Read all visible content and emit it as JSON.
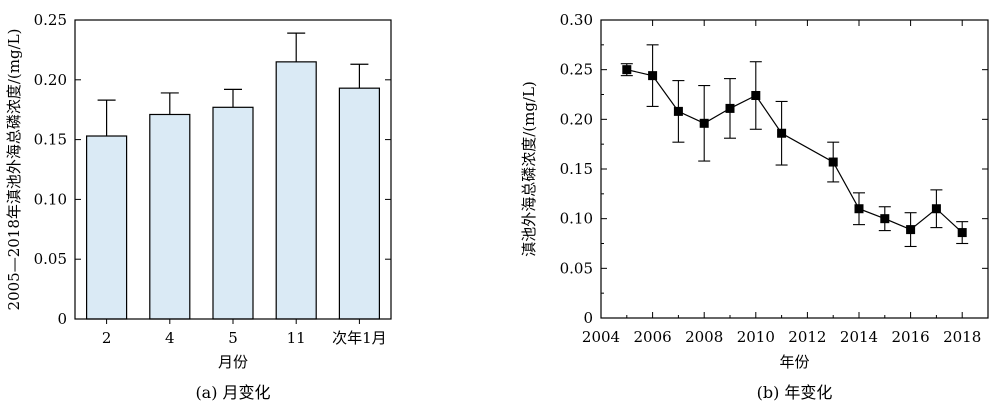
{
  "chart_data": [
    {
      "type": "bar",
      "caption": "(a) 月变化",
      "xlabel": "月份",
      "ylabel": "2005—2018年滇池外海总磷浓度/(mg/L)",
      "categories": [
        "2",
        "4",
        "5",
        "11",
        "次年1月"
      ],
      "values": [
        0.153,
        0.171,
        0.177,
        0.215,
        0.193
      ],
      "error_upper": [
        0.03,
        0.018,
        0.015,
        0.024,
        0.02
      ],
      "ylim": [
        0,
        0.25
      ],
      "yticks": [
        "0",
        "0.05",
        "0.10",
        "0.15",
        "0.20",
        "0.25"
      ],
      "bar_color": "#daeaf5",
      "grid": false
    },
    {
      "type": "line",
      "caption": "(b) 年变化",
      "xlabel": "年份",
      "ylabel": "滇池外海总磷浓度/(mg/L)",
      "x": [
        2005,
        2006,
        2007,
        2008,
        2009,
        2010,
        2011,
        2013,
        2014,
        2015,
        2016,
        2017,
        2018
      ],
      "y": [
        0.25,
        0.244,
        0.208,
        0.196,
        0.211,
        0.224,
        0.186,
        0.157,
        0.11,
        0.1,
        0.089,
        0.11,
        0.086
      ],
      "error": [
        0.006,
        0.031,
        0.031,
        0.038,
        0.03,
        0.034,
        0.032,
        0.02,
        0.016,
        0.012,
        0.017,
        0.019,
        0.011
      ],
      "xlim": [
        2004,
        2019
      ],
      "ylim": [
        0,
        0.3
      ],
      "xticks": [
        "2004",
        "2006",
        "2008",
        "2010",
        "2012",
        "2014",
        "2016",
        "2018"
      ],
      "yticks": [
        "0",
        "0.05",
        "0.10",
        "0.15",
        "0.20",
        "0.25",
        "0.30"
      ],
      "marker": "square",
      "color": "#000000",
      "grid": false
    }
  ]
}
